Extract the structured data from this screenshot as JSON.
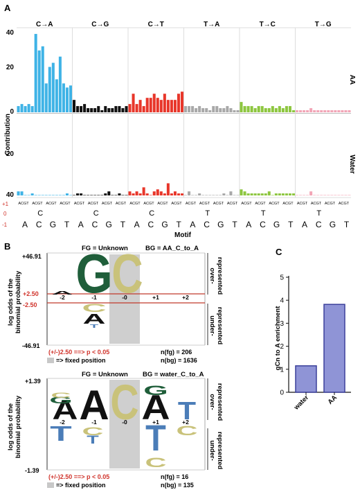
{
  "panel_labels": {
    "a": "A",
    "b": "B",
    "c": "C"
  },
  "panel_a": {
    "ylabel": "Contribution",
    "row_labels": [
      "AA",
      "Water"
    ],
    "yticks_top": [
      "40",
      "20",
      "0"
    ],
    "yticks_bottom": [
      "20",
      "40"
    ],
    "xlabel": "Motif",
    "strand_labels": [
      "+1",
      "0",
      "-1"
    ],
    "bases": [
      "A",
      "C",
      "G",
      "T"
    ],
    "base_tick_text": "ACGT",
    "colors": {
      "C→A": "#3fb3e6",
      "C→G": "#111111",
      "C→T": "#e8362a",
      "T→A": "#a8a8a8",
      "T→C": "#8dc63f",
      "T→G": "#f2a5b6"
    }
  },
  "panel_b": {
    "top": {
      "fg": "FG = Unknown",
      "bg": "BG = AA_C_to_A",
      "ymax": "+46.91",
      "ymin": "-46.91",
      "thr_pos": "+2.50",
      "thr_neg": "-2.50",
      "positions": [
        "-2",
        "-1",
        "-0",
        "+1",
        "+2"
      ],
      "over": "over-represented",
      "under": "under-represented",
      "pvalue": "(+/-)2.50 ==> p < 0.05",
      "fixed": "=> fixed position",
      "nfg": "n(fg) = 206",
      "nbg": "n(bg) = 1636"
    },
    "bottom": {
      "fg": "FG = Unknown",
      "bg": "BG = water_C_to_A",
      "ymax": "+1.39",
      "ymin": "-1.39",
      "positions": [
        "-2",
        "-1",
        "-0",
        "+1",
        "+2"
      ],
      "over": "over-represented",
      "under": "under-represented",
      "pvalue": "(+/-)2.50 ==> p < 0.05",
      "fixed": "=> fixed position",
      "nfg": "n(fg) = 16",
      "nbg": "n(bg) = 135"
    },
    "ylabel_line1": "log odds of the",
    "ylabel_line2": "binomial probability",
    "base_colors": {
      "G": "#1f5e3a",
      "C": "#c9c27a",
      "A": "#111111",
      "T": "#4b7db8"
    }
  },
  "chart_data": [
    {
      "type": "bar",
      "title": "",
      "ylabel": "Contribution",
      "xlabel": "Motif",
      "ylim": [
        0,
        40
      ],
      "panels": [
        "AA",
        "Water"
      ],
      "series": [
        {
          "name": "C→A",
          "x_context": [
            "C"
          ],
          "AA": [
            3,
            4,
            3,
            4,
            3,
            38,
            30,
            32,
            14,
            22,
            24,
            16,
            27,
            14,
            12,
            13
          ],
          "Water": [
            2,
            2,
            0,
            0,
            1,
            0,
            0,
            0,
            0,
            0,
            0,
            0,
            0,
            0,
            1,
            0
          ]
        },
        {
          "name": "C→G",
          "x_context": [
            "C"
          ],
          "AA": [
            6,
            3,
            3,
            4,
            2,
            2,
            2,
            3,
            1,
            3,
            2,
            2,
            3,
            3,
            2,
            3
          ],
          "Water": [
            0,
            1,
            1,
            0,
            0,
            0,
            0,
            0,
            0,
            1,
            2,
            0,
            0,
            1,
            0,
            0
          ]
        },
        {
          "name": "C→T",
          "x_context": [
            "C"
          ],
          "AA": [
            4,
            9,
            4,
            6,
            3,
            7,
            7,
            9,
            7,
            6,
            9,
            6,
            6,
            6,
            9,
            10
          ],
          "Water": [
            2,
            1,
            2,
            1,
            4,
            1,
            0,
            2,
            3,
            2,
            1,
            6,
            1,
            2,
            1,
            1
          ]
        },
        {
          "name": "T→A",
          "x_context": [
            "T"
          ],
          "AA": [
            3,
            3,
            3,
            2,
            3,
            2,
            2,
            1,
            3,
            3,
            2,
            2,
            3,
            2,
            1,
            1
          ],
          "Water": [
            0,
            2,
            0,
            0,
            1,
            0,
            0,
            0,
            0,
            0,
            0,
            1,
            0,
            2,
            0,
            0
          ]
        },
        {
          "name": "T→C",
          "x_context": [
            "T"
          ],
          "AA": [
            5,
            3,
            3,
            3,
            2,
            3,
            3,
            2,
            2,
            3,
            2,
            3,
            2,
            3,
            3,
            1
          ],
          "Water": [
            3,
            2,
            1,
            1,
            1,
            1,
            1,
            1,
            2,
            0,
            1,
            1,
            1,
            1,
            1,
            1
          ]
        },
        {
          "name": "T→G",
          "x_context": [
            "T"
          ],
          "AA": [
            1,
            1,
            1,
            1,
            2,
            1,
            1,
            1,
            1,
            1,
            1,
            1,
            1,
            1,
            1,
            1
          ],
          "Water": [
            0,
            0,
            0,
            0,
            2,
            0,
            0,
            0,
            0,
            0,
            0,
            0,
            0,
            0,
            0,
            0
          ]
        }
      ]
    },
    {
      "type": "bar",
      "title": "",
      "xlabel": "",
      "ylabel": "gCn to A  enrichment",
      "ylim": [
        0,
        5
      ],
      "yticks": [
        "0",
        "1",
        "2",
        "3",
        "4",
        "5"
      ],
      "categories": [
        "water",
        "AA"
      ],
      "values": [
        1.15,
        3.82
      ],
      "color": "#8f94d6"
    }
  ]
}
